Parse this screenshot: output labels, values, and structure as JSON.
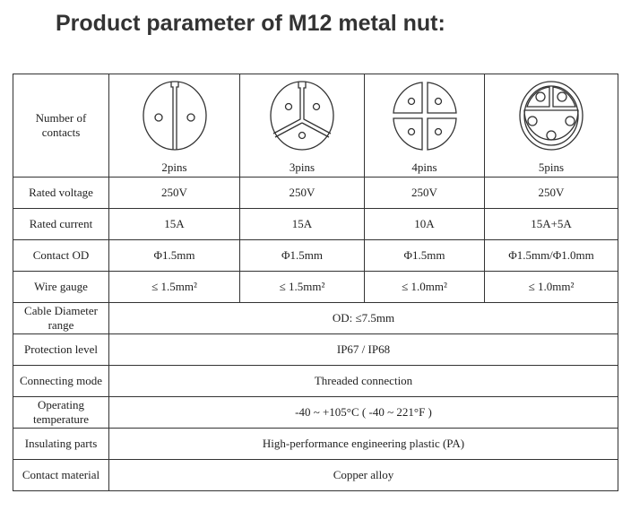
{
  "title": "Product parameter of M12 metal nut:",
  "header": {
    "label": "Number of contacts",
    "contacts": [
      {
        "pins": "2pins",
        "icon": "2-pin-connector-icon"
      },
      {
        "pins": "3pins",
        "icon": "3-pin-connector-icon"
      },
      {
        "pins": "4pins",
        "icon": "4-pin-connector-icon"
      },
      {
        "pins": "5pins",
        "icon": "5-pin-connector-icon"
      }
    ]
  },
  "rows": [
    {
      "label": "Rated voltage",
      "values": [
        "250V",
        "250V",
        "250V",
        "250V"
      ]
    },
    {
      "label": "Rated current",
      "values": [
        "15A",
        "15A",
        "10A",
        "15A+5A"
      ]
    },
    {
      "label": "Contact OD",
      "values": [
        "Φ1.5mm",
        "Φ1.5mm",
        "Φ1.5mm",
        "Φ1.5mm/Φ1.0mm"
      ]
    },
    {
      "label": "Wire gauge",
      "values": [
        "≤ 1.5mm²",
        "≤ 1.5mm²",
        "≤ 1.0mm²",
        "≤ 1.0mm²"
      ]
    }
  ],
  "merged_rows": [
    {
      "label": "Cable Diameter range",
      "value": "OD: ≤7.5mm"
    },
    {
      "label": "Protection level",
      "value": "IP67 / IP68"
    },
    {
      "label": "Connecting mode",
      "value": "Threaded connection"
    },
    {
      "label": "Operating temperature",
      "value": "-40 ~ +105°C ( -40 ~ 221°F )"
    },
    {
      "label": "Insulating parts",
      "value": "High-performance engineering plastic (PA)"
    },
    {
      "label": "Contact material",
      "value": "Copper alloy"
    }
  ]
}
